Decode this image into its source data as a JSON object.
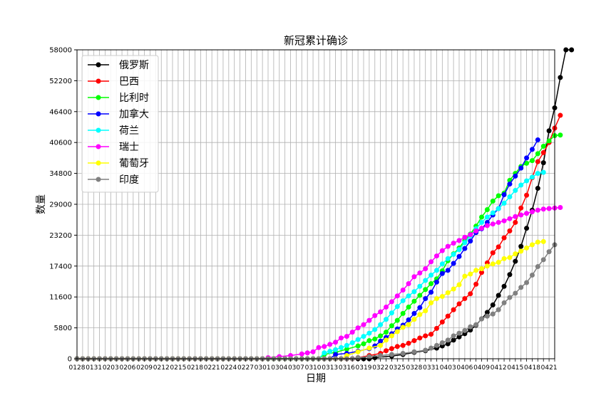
{
  "chart_data": {
    "type": "line",
    "title": "新冠累计确诊",
    "xlabel": "日期",
    "ylabel": "数量",
    "ylim": [
      0,
      58000
    ],
    "yticks": [
      0,
      5800,
      11600,
      17400,
      23200,
      29000,
      34800,
      40600,
      46400,
      52200,
      58000
    ],
    "x_tick_labels": [
      "0128",
      "0131",
      "0203",
      "0206",
      "0209",
      "0212",
      "0215",
      "0218",
      "0221",
      "0224",
      "0227",
      "0301",
      "0304",
      "0307",
      "0310",
      "0313",
      "0316",
      "0319",
      "0322",
      "0325",
      "0328",
      "0331",
      "0403",
      "0406",
      "0409",
      "0412",
      "0415",
      "0418",
      "0421"
    ],
    "x_count": 86,
    "grid": true,
    "legend_position": "upper-left",
    "series": [
      {
        "name": "俄罗斯",
        "color": "#000000",
        "points": [
          [
            53,
            200
          ],
          [
            56,
            500
          ],
          [
            58,
            800
          ],
          [
            60,
            1200
          ],
          [
            62,
            1500
          ],
          [
            64,
            2000
          ],
          [
            65,
            2400
          ],
          [
            66,
            2800
          ],
          [
            67,
            3500
          ],
          [
            68,
            4100
          ],
          [
            69,
            4700
          ],
          [
            70,
            5400
          ],
          [
            71,
            6300
          ],
          [
            72,
            7500
          ],
          [
            73,
            8700
          ],
          [
            74,
            10100
          ],
          [
            75,
            11900
          ],
          [
            76,
            13600
          ],
          [
            77,
            15800
          ],
          [
            78,
            18300
          ],
          [
            79,
            21100
          ],
          [
            80,
            24500
          ],
          [
            81,
            27900
          ],
          [
            82,
            32000
          ],
          [
            83,
            36800
          ],
          [
            84,
            42800
          ],
          [
            85,
            47100
          ],
          [
            86,
            52800
          ],
          [
            87,
            57999
          ],
          [
            88,
            58000
          ]
        ]
      },
      {
        "name": "巴西",
        "color": "#ff0000",
        "points": [
          [
            50,
            200
          ],
          [
            52,
            600
          ],
          [
            54,
            1000
          ],
          [
            55,
            1500
          ],
          [
            56,
            1900
          ],
          [
            57,
            2300
          ],
          [
            58,
            2500
          ],
          [
            59,
            2900
          ],
          [
            60,
            3400
          ],
          [
            61,
            3900
          ],
          [
            62,
            4300
          ],
          [
            63,
            4600
          ],
          [
            64,
            5700
          ],
          [
            65,
            6900
          ],
          [
            66,
            8000
          ],
          [
            67,
            9200
          ],
          [
            68,
            10300
          ],
          [
            69,
            11300
          ],
          [
            70,
            12200
          ],
          [
            71,
            14000
          ],
          [
            72,
            16200
          ],
          [
            73,
            18000
          ],
          [
            74,
            19900
          ],
          [
            75,
            21000
          ],
          [
            76,
            22700
          ],
          [
            77,
            24000
          ],
          [
            78,
            25600
          ],
          [
            79,
            28300
          ],
          [
            80,
            30700
          ],
          [
            81,
            34000
          ],
          [
            82,
            37000
          ],
          [
            83,
            38700
          ],
          [
            84,
            40600
          ],
          [
            85,
            43300
          ],
          [
            86,
            45700
          ]
        ]
      },
      {
        "name": "比利时",
        "color": "#00ff00",
        "points": [
          [
            44,
            800
          ],
          [
            46,
            1200
          ],
          [
            48,
            1800
          ],
          [
            50,
            2400
          ],
          [
            51,
            2800
          ],
          [
            52,
            3400
          ],
          [
            53,
            3700
          ],
          [
            54,
            4300
          ],
          [
            55,
            5000
          ],
          [
            56,
            6200
          ],
          [
            57,
            7200
          ],
          [
            58,
            8500
          ],
          [
            59,
            9700
          ],
          [
            60,
            10800
          ],
          [
            61,
            11900
          ],
          [
            62,
            13000
          ],
          [
            63,
            14100
          ],
          [
            64,
            15000
          ],
          [
            65,
            16500
          ],
          [
            66,
            18400
          ],
          [
            67,
            19700
          ],
          [
            68,
            20800
          ],
          [
            69,
            22200
          ],
          [
            70,
            23400
          ],
          [
            71,
            24900
          ],
          [
            72,
            26600
          ],
          [
            73,
            28000
          ],
          [
            74,
            29600
          ],
          [
            75,
            30600
          ],
          [
            76,
            31100
          ],
          [
            77,
            33500
          ],
          [
            78,
            34800
          ],
          [
            79,
            36100
          ],
          [
            80,
            36700
          ],
          [
            81,
            37200
          ],
          [
            82,
            38500
          ],
          [
            83,
            39900
          ],
          [
            84,
            40900
          ],
          [
            85,
            41900
          ],
          [
            86,
            42000
          ]
        ]
      },
      {
        "name": "加拿大",
        "color": "#0000ff",
        "points": [
          [
            46,
            800
          ],
          [
            48,
            1000
          ],
          [
            50,
            1400
          ],
          [
            52,
            1900
          ],
          [
            53,
            2400
          ],
          [
            54,
            3300
          ],
          [
            55,
            4000
          ],
          [
            56,
            4700
          ],
          [
            57,
            5600
          ],
          [
            58,
            6300
          ],
          [
            59,
            7300
          ],
          [
            60,
            8500
          ],
          [
            61,
            9600
          ],
          [
            62,
            11300
          ],
          [
            63,
            12500
          ],
          [
            64,
            14400
          ],
          [
            65,
            16000
          ],
          [
            66,
            16600
          ],
          [
            67,
            17900
          ],
          [
            68,
            19200
          ],
          [
            69,
            20700
          ],
          [
            70,
            22100
          ],
          [
            71,
            23700
          ],
          [
            72,
            24400
          ],
          [
            73,
            25600
          ],
          [
            74,
            27000
          ],
          [
            75,
            28200
          ],
          [
            76,
            30800
          ],
          [
            77,
            32800
          ],
          [
            78,
            34300
          ],
          [
            79,
            35800
          ],
          [
            80,
            37700
          ],
          [
            81,
            39300
          ],
          [
            82,
            41100
          ]
        ]
      },
      {
        "name": "荷兰",
        "color": "#00ffff",
        "points": [
          [
            44,
            1100
          ],
          [
            45,
            1400
          ],
          [
            46,
            1700
          ],
          [
            47,
            2100
          ],
          [
            48,
            2500
          ],
          [
            49,
            3000
          ],
          [
            50,
            3600
          ],
          [
            51,
            4200
          ],
          [
            52,
            4800
          ],
          [
            53,
            5500
          ],
          [
            54,
            6400
          ],
          [
            55,
            7400
          ],
          [
            56,
            8600
          ],
          [
            57,
            9800
          ],
          [
            58,
            10900
          ],
          [
            59,
            11800
          ],
          [
            60,
            12600
          ],
          [
            61,
            13600
          ],
          [
            62,
            14700
          ],
          [
            63,
            15700
          ],
          [
            64,
            16600
          ],
          [
            65,
            17800
          ],
          [
            66,
            18800
          ],
          [
            67,
            19600
          ],
          [
            68,
            20500
          ],
          [
            69,
            21800
          ],
          [
            70,
            23100
          ],
          [
            71,
            24400
          ],
          [
            72,
            25600
          ],
          [
            73,
            26600
          ],
          [
            74,
            27400
          ],
          [
            75,
            28200
          ],
          [
            76,
            29200
          ],
          [
            77,
            30400
          ],
          [
            78,
            31600
          ],
          [
            79,
            32600
          ],
          [
            80,
            33400
          ],
          [
            81,
            34100
          ],
          [
            82,
            34800
          ],
          [
            83,
            35000
          ]
        ]
      },
      {
        "name": "瑞士",
        "color": "#ff00ff",
        "points": [
          [
            34,
            200
          ],
          [
            36,
            400
          ],
          [
            38,
            600
          ],
          [
            40,
            900
          ],
          [
            41,
            1100
          ],
          [
            42,
            1300
          ],
          [
            43,
            2100
          ],
          [
            44,
            2300
          ],
          [
            45,
            2700
          ],
          [
            46,
            3100
          ],
          [
            47,
            3900
          ],
          [
            48,
            4200
          ],
          [
            49,
            5000
          ],
          [
            50,
            5800
          ],
          [
            51,
            6400
          ],
          [
            52,
            7200
          ],
          [
            53,
            8100
          ],
          [
            54,
            8800
          ],
          [
            55,
            9700
          ],
          [
            56,
            10700
          ],
          [
            57,
            11800
          ],
          [
            58,
            12900
          ],
          [
            59,
            14100
          ],
          [
            60,
            15400
          ],
          [
            61,
            16100
          ],
          [
            62,
            16900
          ],
          [
            63,
            18200
          ],
          [
            64,
            19300
          ],
          [
            65,
            20300
          ],
          [
            66,
            21100
          ],
          [
            67,
            21700
          ],
          [
            68,
            22200
          ],
          [
            69,
            22800
          ],
          [
            70,
            23300
          ],
          [
            71,
            24000
          ],
          [
            72,
            24500
          ],
          [
            73,
            25000
          ],
          [
            74,
            25300
          ],
          [
            75,
            25600
          ],
          [
            76,
            25900
          ],
          [
            77,
            26300
          ],
          [
            78,
            26700
          ],
          [
            79,
            27000
          ],
          [
            80,
            27300
          ],
          [
            81,
            27600
          ],
          [
            82,
            27900
          ],
          [
            83,
            28100
          ],
          [
            84,
            28200
          ],
          [
            85,
            28300
          ],
          [
            86,
            28400
          ]
        ]
      },
      {
        "name": "葡萄牙",
        "color": "#ffff00",
        "points": [
          [
            48,
            600
          ],
          [
            50,
            1300
          ],
          [
            52,
            2000
          ],
          [
            54,
            2500
          ],
          [
            55,
            3500
          ],
          [
            56,
            4300
          ],
          [
            57,
            5100
          ],
          [
            58,
            5900
          ],
          [
            59,
            6400
          ],
          [
            60,
            7400
          ],
          [
            61,
            8300
          ],
          [
            62,
            9000
          ],
          [
            63,
            10500
          ],
          [
            64,
            11300
          ],
          [
            65,
            11700
          ],
          [
            66,
            12400
          ],
          [
            67,
            13100
          ],
          [
            68,
            13900
          ],
          [
            69,
            15500
          ],
          [
            70,
            15900
          ],
          [
            71,
            16600
          ],
          [
            72,
            16900
          ],
          [
            73,
            17400
          ],
          [
            74,
            17800
          ],
          [
            75,
            18100
          ],
          [
            76,
            18800
          ],
          [
            77,
            19000
          ],
          [
            78,
            19700
          ],
          [
            79,
            20200
          ],
          [
            80,
            20800
          ],
          [
            81,
            21400
          ],
          [
            82,
            21900
          ],
          [
            83,
            22000
          ]
        ]
      },
      {
        "name": "印度",
        "color": "#808080",
        "points": [
          [
            50,
            200
          ],
          [
            52,
            400
          ],
          [
            54,
            600
          ],
          [
            56,
            800
          ],
          [
            58,
            1000
          ],
          [
            60,
            1300
          ],
          [
            62,
            1600
          ],
          [
            63,
            2000
          ],
          [
            64,
            2500
          ],
          [
            65,
            3000
          ],
          [
            66,
            3500
          ],
          [
            67,
            4300
          ],
          [
            68,
            4800
          ],
          [
            69,
            5300
          ],
          [
            70,
            6000
          ],
          [
            71,
            6400
          ],
          [
            72,
            7500
          ],
          [
            73,
            8000
          ],
          [
            74,
            8400
          ],
          [
            75,
            9200
          ],
          [
            76,
            10500
          ],
          [
            77,
            11500
          ],
          [
            78,
            12300
          ],
          [
            79,
            13400
          ],
          [
            80,
            14300
          ],
          [
            81,
            15700
          ],
          [
            82,
            17300
          ],
          [
            83,
            18600
          ],
          [
            84,
            20100
          ],
          [
            85,
            21400
          ]
        ]
      }
    ]
  }
}
